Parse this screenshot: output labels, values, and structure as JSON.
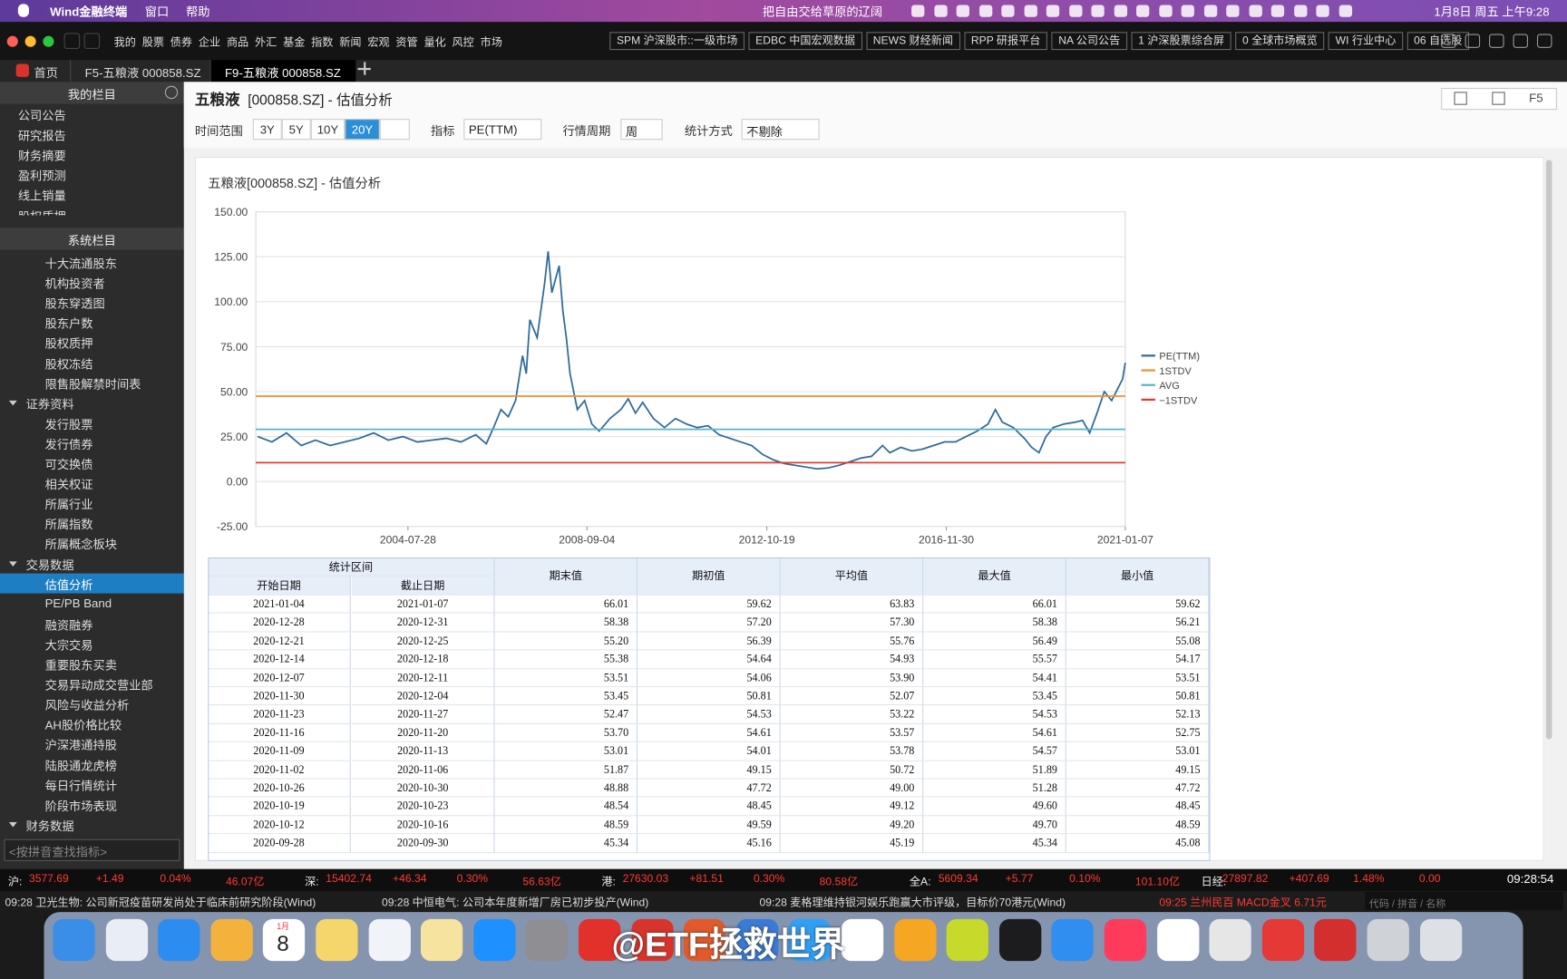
{
  "menubar": {
    "app": "Wind金融终端",
    "menus": [
      "窗口",
      "帮助"
    ],
    "center": "把自由交给草原的辽阔",
    "clock": "1月8日 周五 上午9:28"
  },
  "toolbar": {
    "menus": [
      "我的",
      "股票",
      "债券",
      "企业",
      "商品",
      "外汇",
      "基金",
      "指数",
      "新闻",
      "宏观",
      "资管",
      "量化",
      "风控",
      "市场"
    ],
    "buttons": [
      "SPM 沪深股市::一级市场",
      "EDBC 中国宏观数据",
      "NEWS 财经新闻",
      "RPP 研报平台",
      "NA 公司公告",
      "1 沪深股票综合屏",
      "0 全球市场概览",
      "WI 行业中心",
      "06 自选股"
    ]
  },
  "tabs": [
    "首页",
    "F5-五粮液 000858.SZ",
    "F9-五粮液 000858.SZ"
  ],
  "active_tab": 2,
  "sidebar": {
    "my_title": "我的栏目",
    "my_items": [
      "公司公告",
      "研究报告",
      "财务摘要",
      "盈利预测",
      "线上销量",
      "股权质押"
    ],
    "system_title": "系统栏目",
    "system_items": [
      {
        "label": "十大流通股东",
        "level": 1
      },
      {
        "label": "机构投资者",
        "level": 1
      },
      {
        "label": "股东穿透图",
        "level": 1
      },
      {
        "label": "股东户数",
        "level": 1
      },
      {
        "label": "股权质押",
        "level": 1
      },
      {
        "label": "股权冻结",
        "level": 1
      },
      {
        "label": "限售股解禁时间表",
        "level": 1
      },
      {
        "label": "证券资料",
        "level": 0
      },
      {
        "label": "发行股票",
        "level": 1
      },
      {
        "label": "发行债券",
        "level": 1
      },
      {
        "label": "可交换债",
        "level": 1
      },
      {
        "label": "相关权证",
        "level": 1
      },
      {
        "label": "所属行业",
        "level": 1
      },
      {
        "label": "所属指数",
        "level": 1
      },
      {
        "label": "所属概念板块",
        "level": 1
      },
      {
        "label": "交易数据",
        "level": 0
      },
      {
        "label": "估值分析",
        "level": 1
      },
      {
        "label": "PE/PB Band",
        "level": 1
      },
      {
        "label": "融资融券",
        "level": 1
      },
      {
        "label": "大宗交易",
        "level": 1
      },
      {
        "label": "重要股东买卖",
        "level": 1
      },
      {
        "label": "交易异动成交营业部",
        "level": 1
      },
      {
        "label": "风险与收益分析",
        "level": 1
      },
      {
        "label": "AH股价格比较",
        "level": 1
      },
      {
        "label": "沪深港通持股",
        "level": 1
      },
      {
        "label": "陆股通龙虎榜",
        "level": 1
      },
      {
        "label": "每日行情统计",
        "level": 1
      },
      {
        "label": "阶段市场表现",
        "level": 1
      },
      {
        "label": "财务数据",
        "level": 0
      }
    ],
    "selected_index": 16,
    "search": "<按拼音查找指标>"
  },
  "header": {
    "name": "五粮液",
    "code": "[000858.SZ] - 估值分析",
    "shortcut": "F5"
  },
  "filters": {
    "range_label": "时间范围",
    "ranges": [
      "3Y",
      "5Y",
      "10Y",
      "20Y"
    ],
    "active_range": 3,
    "metric_label": "指标",
    "metric": "PE(TTM)",
    "period_label": "行情周期",
    "period": "周",
    "method_label": "统计方式",
    "method": "不剔除"
  },
  "chart_data": {
    "type": "line",
    "title": "五粮液[000858.SZ] - 估值分析",
    "xlim": [
      "2001-01-31",
      "2021-01-07"
    ],
    "xticks": [
      "2004-07-28",
      "2008-09-04",
      "2012-10-19",
      "2016-11-30",
      "2021-01-07"
    ],
    "ylim": [
      -25,
      150
    ],
    "yticks": [
      {
        "value": -25,
        "label": "-25.00"
      },
      {
        "value": 0,
        "label": "0.00"
      },
      {
        "value": 25,
        "label": "25.00"
      },
      {
        "value": 50,
        "label": "50.00"
      },
      {
        "value": 75,
        "label": "75.00"
      },
      {
        "value": 100,
        "label": "100.00"
      },
      {
        "value": 125,
        "label": "125.00"
      },
      {
        "value": 150,
        "label": "150.00"
      }
    ],
    "grid": true,
    "x": [
      "2001-02-15",
      "2001-06-15",
      "2001-10-15",
      "2002-02-15",
      "2002-06-15",
      "2002-10-15",
      "2003-02-15",
      "2003-06-15",
      "2003-10-15",
      "2004-02-15",
      "2004-06-15",
      "2004-10-15",
      "2005-02-15",
      "2005-06-15",
      "2005-10-15",
      "2006-02-15",
      "2006-05-15",
      "2006-07-15",
      "2006-09-15",
      "2006-11-15",
      "2007-01-15",
      "2007-03-15",
      "2007-04-15",
      "2007-05-15",
      "2007-07-15",
      "2007-09-15",
      "2007-10-15",
      "2007-11-15",
      "2008-01-15",
      "2008-02-15",
      "2008-03-15",
      "2008-04-15",
      "2008-06-15",
      "2008-08-15",
      "2008-10-15",
      "2008-12-15",
      "2009-03-15",
      "2009-06-15",
      "2009-08-15",
      "2009-10-15",
      "2009-12-15",
      "2010-03-15",
      "2010-06-15",
      "2010-09-15",
      "2010-12-15",
      "2011-03-15",
      "2011-06-15",
      "2011-09-15",
      "2011-12-15",
      "2012-03-15",
      "2012-06-15",
      "2012-09-15",
      "2012-12-15",
      "2013-03-15",
      "2013-06-15",
      "2013-09-15",
      "2013-12-15",
      "2014-03-15",
      "2014-06-15",
      "2014-09-15",
      "2014-12-15",
      "2015-03-15",
      "2015-06-15",
      "2015-08-15",
      "2015-11-15",
      "2016-02-15",
      "2016-05-15",
      "2016-08-15",
      "2016-11-15",
      "2017-02-15",
      "2017-05-15",
      "2017-08-15",
      "2017-11-15",
      "2018-01-15",
      "2018-03-15",
      "2018-06-15",
      "2018-09-15",
      "2018-11-15",
      "2019-01-15",
      "2019-03-15",
      "2019-05-15",
      "2019-08-15",
      "2019-11-15",
      "2020-01-15",
      "2020-03-15",
      "2020-05-15",
      "2020-07-15",
      "2020-09-15",
      "2020-11-15",
      "2020-12-15",
      "2021-01-07"
    ],
    "series": [
      {
        "name": "PE(TTM)",
        "color": "#2f6b9a",
        "values": [
          25,
          22,
          27,
          20,
          23,
          20,
          22,
          24,
          27,
          23,
          25,
          22,
          23,
          24,
          22,
          26,
          21,
          30,
          40,
          36,
          45,
          70,
          60,
          90,
          80,
          110,
          128,
          105,
          120,
          95,
          80,
          60,
          40,
          45,
          32,
          28,
          35,
          40,
          46,
          38,
          44,
          35,
          30,
          35,
          32,
          30,
          31,
          26,
          24,
          22,
          20,
          15,
          12,
          10,
          9,
          8,
          7,
          7.5,
          9,
          11,
          13,
          14,
          20,
          16,
          19,
          17,
          18,
          20,
          22,
          22,
          25,
          28,
          32,
          40,
          33,
          30,
          24,
          19,
          16,
          25,
          30,
          32,
          33,
          34,
          27,
          38,
          50,
          45,
          53,
          57,
          66.01
        ]
      },
      {
        "name": "1STDV",
        "color": "#f28e2b",
        "value": 47.5
      },
      {
        "name": "AVG",
        "color": "#5ab4c8",
        "value": 29
      },
      {
        "name": "−1STDV",
        "color": "#e03c31",
        "value": 10.5
      }
    ],
    "legend": "right"
  },
  "table": {
    "group": "统计区间",
    "sub": [
      "开始日期",
      "截止日期"
    ],
    "columns": [
      "期末值",
      "期初值",
      "平均值",
      "最大值",
      "最小值"
    ],
    "rows": [
      [
        "2021-01-04",
        "2021-01-07",
        "66.01",
        "59.62",
        "63.83",
        "66.01",
        "59.62"
      ],
      [
        "2020-12-28",
        "2020-12-31",
        "58.38",
        "57.20",
        "57.30",
        "58.38",
        "56.21"
      ],
      [
        "2020-12-21",
        "2020-12-25",
        "55.20",
        "56.39",
        "55.76",
        "56.49",
        "55.08"
      ],
      [
        "2020-12-14",
        "2020-12-18",
        "55.38",
        "54.64",
        "54.93",
        "55.57",
        "54.17"
      ],
      [
        "2020-12-07",
        "2020-12-11",
        "53.51",
        "54.06",
        "53.90",
        "54.41",
        "53.51"
      ],
      [
        "2020-11-30",
        "2020-12-04",
        "53.45",
        "50.81",
        "52.07",
        "53.45",
        "50.81"
      ],
      [
        "2020-11-23",
        "2020-11-27",
        "52.47",
        "54.53",
        "53.22",
        "54.53",
        "52.13"
      ],
      [
        "2020-11-16",
        "2020-11-20",
        "53.70",
        "54.61",
        "53.57",
        "54.61",
        "52.75"
      ],
      [
        "2020-11-09",
        "2020-11-13",
        "53.01",
        "54.01",
        "53.78",
        "54.57",
        "53.01"
      ],
      [
        "2020-11-02",
        "2020-11-06",
        "51.87",
        "49.15",
        "50.72",
        "51.89",
        "49.15"
      ],
      [
        "2020-10-26",
        "2020-10-30",
        "48.88",
        "47.72",
        "49.00",
        "51.28",
        "47.72"
      ],
      [
        "2020-10-19",
        "2020-10-23",
        "48.54",
        "48.45",
        "49.12",
        "49.60",
        "48.45"
      ],
      [
        "2020-10-12",
        "2020-10-16",
        "48.59",
        "49.59",
        "49.20",
        "49.70",
        "48.59"
      ],
      [
        "2020-09-28",
        "2020-09-30",
        "45.34",
        "45.16",
        "45.19",
        "45.34",
        "45.08"
      ]
    ]
  },
  "ticker": [
    [
      "沪:",
      "3577.69",
      "+1.49",
      "0.04%",
      "46.07亿"
    ],
    [
      "深:",
      "15402.74",
      "+46.34",
      "0.30%",
      "56.63亿"
    ],
    [
      "港:",
      "27630.03",
      "+81.51",
      "0.30%",
      "80.58亿"
    ],
    [
      "全A:",
      "5609.34",
      "+5.77",
      "0.10%",
      "101.10亿"
    ],
    [
      "日经:",
      "27897.82",
      "+407.69",
      "1.48%",
      "0.00"
    ]
  ],
  "ticker_time": "09:28:54",
  "news": [
    "09:28 卫光生物: 公司新冠疫苗研发尚处于临床前研究阶段(Wind)",
    "09:28 中恒电气: 公司本年度新增厂房已初步投产(Wind)",
    "09:28 麦格理维持银河娱乐跑赢大市评级，目标价70港元(Wind)",
    "09:25 兰州民百 MACD金叉 6.71元"
  ],
  "news_search": "代码 / 拼音 / 名称",
  "dock": {
    "calendar_month": "1月",
    "calendar_day": "8",
    "watermark": "@ETF拯救世界"
  }
}
